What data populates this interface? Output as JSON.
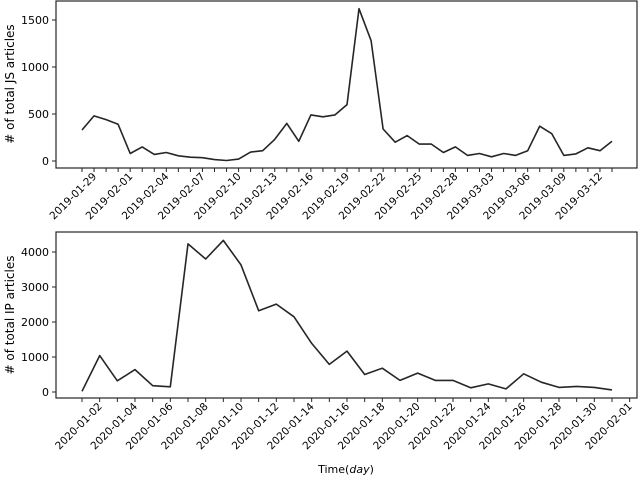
{
  "chart_data": [
    {
      "type": "line",
      "title": "",
      "xlabel": "",
      "ylabel": "# of total JS articles",
      "ylim": [
        0,
        1700
      ],
      "yticks": [
        0,
        500,
        1000,
        1500
      ],
      "grid": false,
      "legend": null,
      "line_color": "#262626",
      "x_start": "2019-01-28",
      "x_tick_labels": [
        "2019-01-29",
        "2019-02-01",
        "2019-02-04",
        "2019-02-07",
        "2019-02-10",
        "2019-02-13",
        "2019-02-16",
        "2019-02-19",
        "2019-02-22",
        "2019-02-25",
        "2019-02-28",
        "2019-03-03",
        "2019-03-06",
        "2019-03-09",
        "2019-03-12"
      ],
      "values": [
        330,
        480,
        440,
        390,
        80,
        150,
        70,
        90,
        55,
        40,
        35,
        15,
        5,
        20,
        95,
        110,
        230,
        400,
        210,
        490,
        470,
        490,
        600,
        1620,
        1280,
        340,
        200,
        270,
        180,
        180,
        90,
        150,
        60,
        80,
        45,
        80,
        60,
        110,
        370,
        290,
        60,
        75,
        140,
        110,
        210
      ]
    },
    {
      "type": "line",
      "title": "",
      "xlabel": "Time(day)",
      "ylabel": "# of total IP articles",
      "ylim": [
        0,
        4600
      ],
      "yticks": [
        0,
        1000,
        2000,
        3000,
        4000
      ],
      "grid": false,
      "legend": null,
      "line_color": "#262626",
      "x_start": "2020-01-01",
      "x_tick_labels": [
        "2020-01-02",
        "2020-01-04",
        "2020-01-06",
        "2020-01-08",
        "2020-01-10",
        "2020-01-12",
        "2020-01-14",
        "2020-01-16",
        "2020-01-18",
        "2020-01-20",
        "2020-01-22",
        "2020-01-24",
        "2020-01-26",
        "2020-01-28",
        "2020-01-30",
        "2020-02-01"
      ],
      "values": [
        20,
        1040,
        320,
        640,
        180,
        150,
        4230,
        3800,
        4330,
        3630,
        2320,
        2510,
        2150,
        1390,
        790,
        1170,
        500,
        680,
        330,
        540,
        330,
        330,
        120,
        230,
        90,
        520,
        280,
        130,
        160,
        130,
        60
      ]
    }
  ],
  "labels": {
    "top_ylabel": "# of total JS articles",
    "bottom_ylabel": "# of total IP articles",
    "xlabel_prefix": "Time(",
    "xlabel_italic": "day",
    "xlabel_suffix": ")"
  }
}
